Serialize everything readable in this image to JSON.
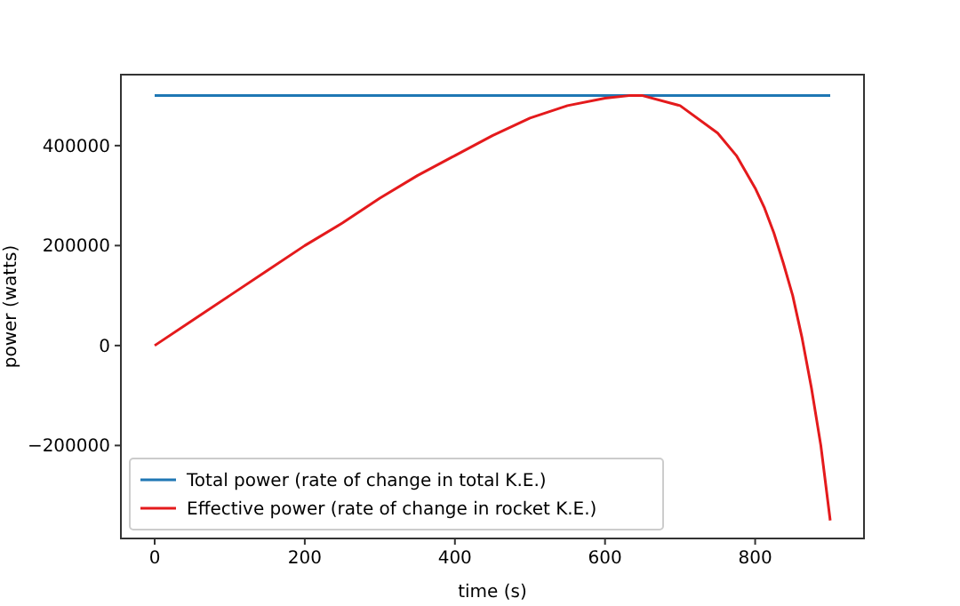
{
  "chart_data": {
    "type": "line",
    "xlabel": "time (s)",
    "ylabel": "power (watts)",
    "xlim": [
      -45,
      945
    ],
    "xticks": [
      0,
      200,
      400,
      600,
      800
    ],
    "ylim": [
      -386000,
      542000
    ],
    "yticks": [
      {
        "value": -200000,
        "label": "−200000"
      },
      0,
      200000,
      400000
    ],
    "grid": false,
    "legend": "bottom left",
    "marker": "none",
    "line_style": "solid",
    "series": [
      {
        "name": "Total power (rate of change in total K.E.)",
        "color": "#1f77b4",
        "x": [
          0,
          900
        ],
        "values": [
          500000,
          500000
        ]
      },
      {
        "name": "Effective power (rate of change in rocket K.E.)",
        "color": "#e41a1c",
        "x": [
          0,
          50,
          100,
          150,
          200,
          250,
          300,
          350,
          400,
          450,
          500,
          550,
          600,
          632,
          650,
          700,
          750,
          775,
          800,
          812.5,
          825,
          837.5,
          850,
          862.5,
          875,
          887.5,
          900
        ],
        "values": [
          0,
          50000,
          100000,
          150000,
          200000,
          245000,
          295000,
          340000,
          380000,
          420000,
          455000,
          480000,
          495000,
          500000,
          500000,
          480000,
          425000,
          380000,
          315000,
          275000,
          225000,
          165000,
          100000,
          15000,
          -85000,
          -200000,
          -350000
        ]
      }
    ]
  }
}
